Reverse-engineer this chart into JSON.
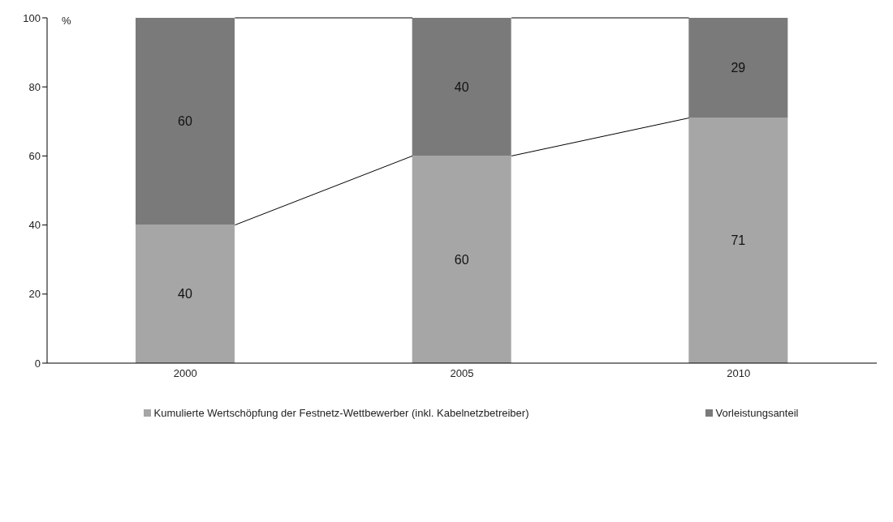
{
  "chart_data": {
    "type": "bar",
    "stacked": true,
    "ylabel": "%",
    "categories": [
      "2000",
      "2005",
      "2010"
    ],
    "series": [
      {
        "name": "Kumulierte Wertschöpfung der Festnetz-Wettbewerber (inkl. Kabelnetzbetreiber)",
        "color": "#a6a6a6",
        "values": [
          40,
          60,
          71
        ]
      },
      {
        "name": "Vorleistungsanteil",
        "color": "#7a7a7a",
        "values": [
          60,
          40,
          29
        ]
      }
    ],
    "ylim": [
      0,
      100
    ],
    "yticks": [
      0,
      20,
      40,
      60,
      80,
      100
    ],
    "data_labels": true,
    "grid": false,
    "legend": "bottom"
  }
}
